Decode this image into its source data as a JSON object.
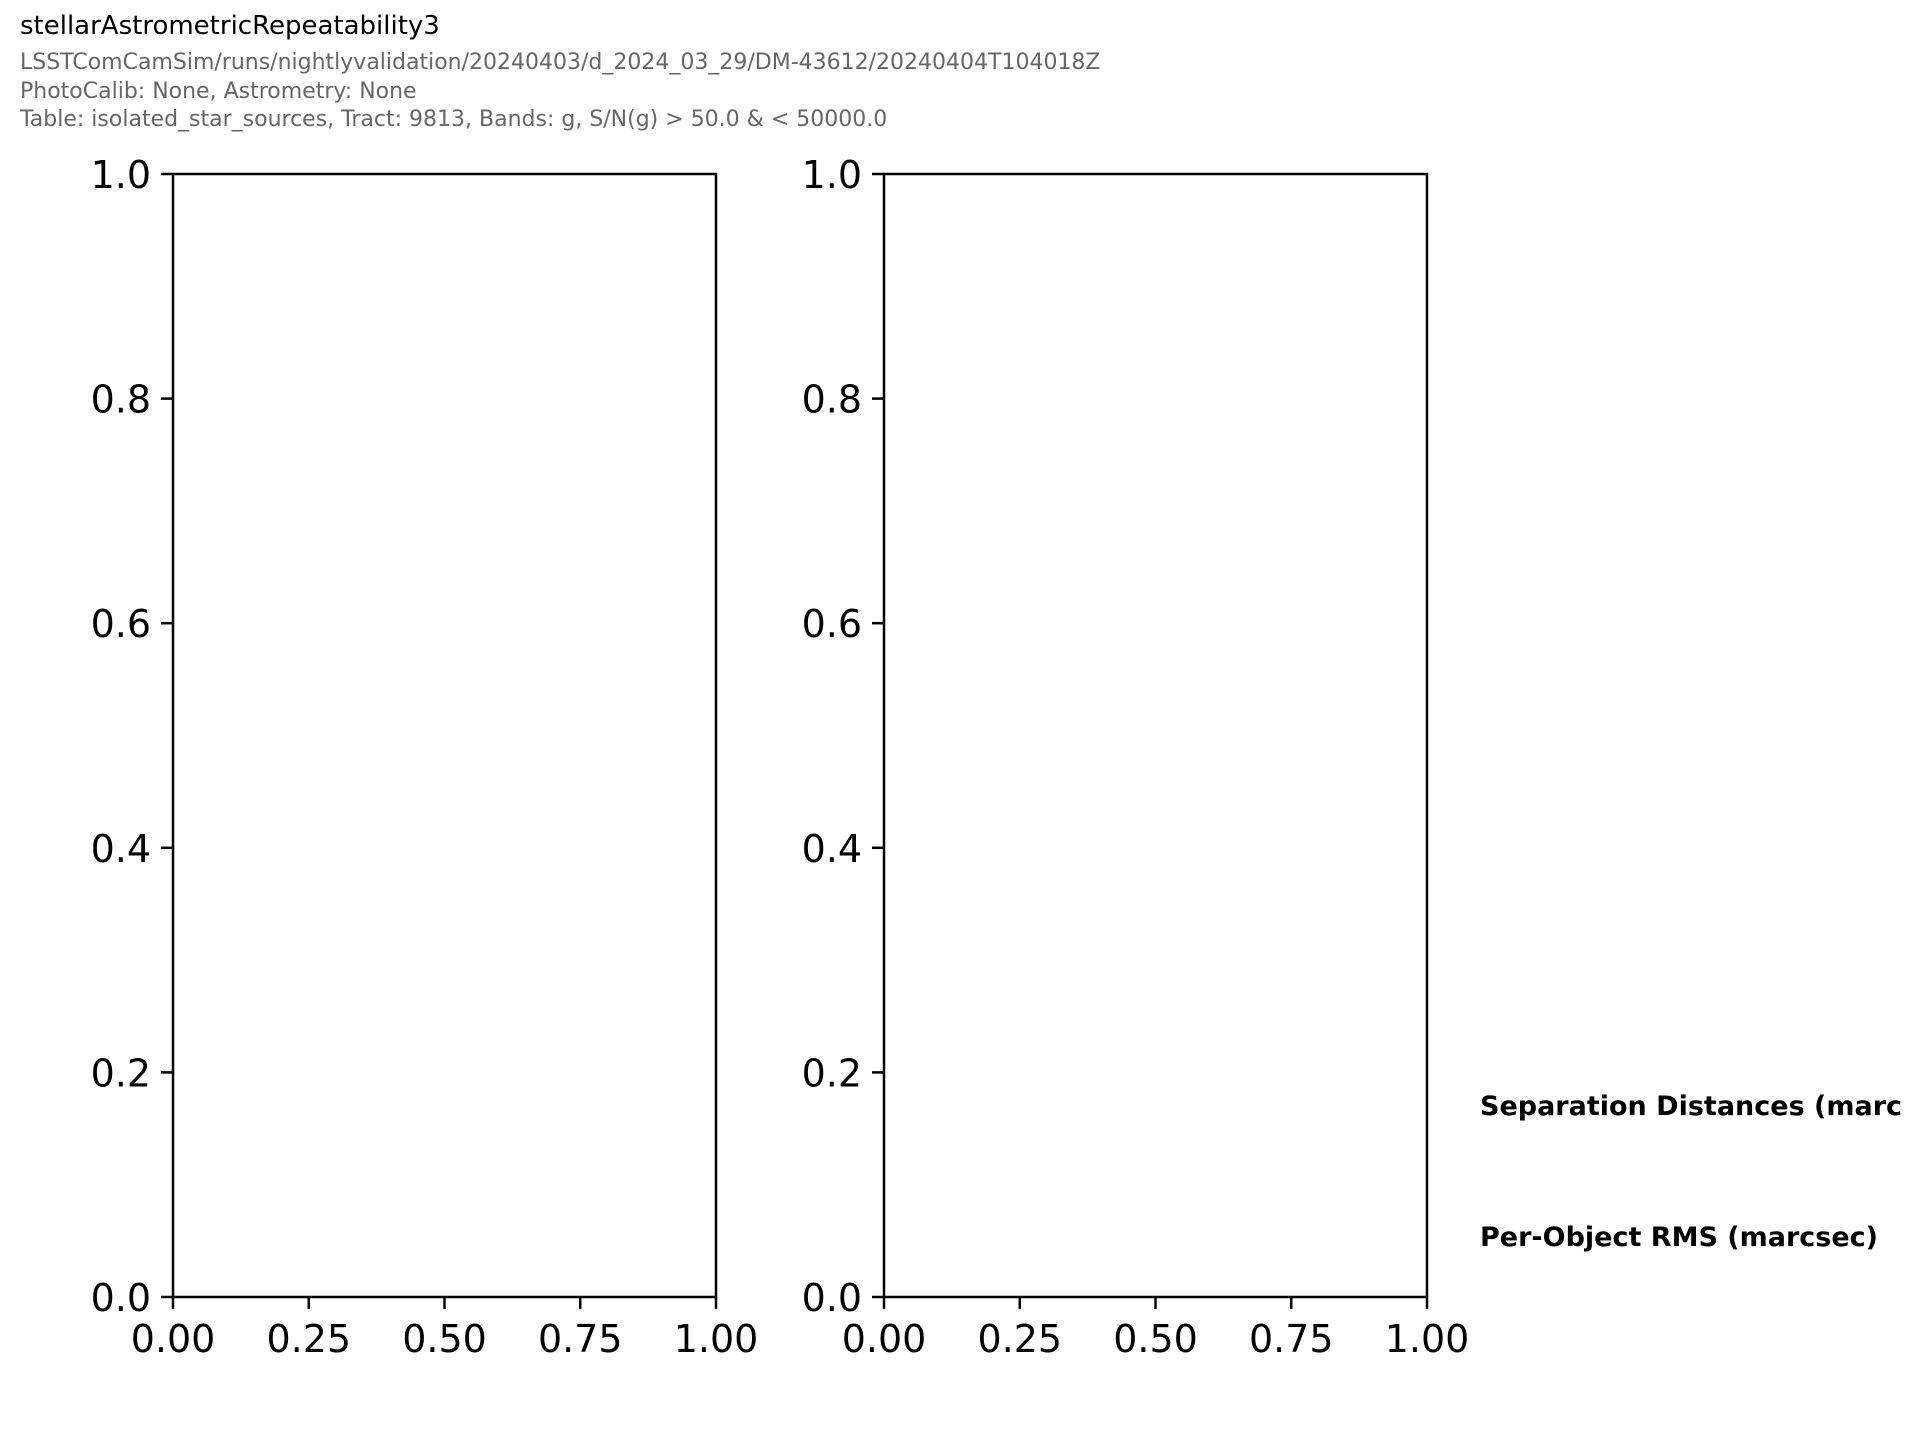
{
  "header": {
    "title": "stellarAstrometricRepeatability3",
    "subtitle_lines": [
      "LSSTComCamSim/runs/nightlyvalidation/20240403/d_2024_03_29/DM-43612/20240404T104018Z",
      "PhotoCalib: None, Astrometry: None",
      "Table: isolated_star_sources, Tract: 9813, Bands: g, S/N(g) > 50.0 & < 50000.0"
    ]
  },
  "side_labels": {
    "separation": "Separation Distances (marc",
    "rms": "Per-Object RMS (marcsec)"
  },
  "colors": {
    "title": "#000000",
    "subtitle": "#666666",
    "axes": "#000000"
  },
  "chart_data": [
    {
      "type": "scatter",
      "title": "",
      "xlabel": "",
      "ylabel": "",
      "xlim": [
        0,
        1
      ],
      "ylim": [
        0,
        1
      ],
      "xticks": [
        "0.00",
        "0.25",
        "0.50",
        "0.75",
        "1.00"
      ],
      "yticks": [
        "0.0",
        "0.2",
        "0.4",
        "0.6",
        "0.8",
        "1.0"
      ],
      "grid": false,
      "series": []
    },
    {
      "type": "scatter",
      "title": "",
      "xlabel": "",
      "ylabel": "",
      "xlim": [
        0,
        1
      ],
      "ylim": [
        0,
        1
      ],
      "xticks": [
        "0.00",
        "0.25",
        "0.50",
        "0.75",
        "1.00"
      ],
      "yticks": [
        "0.0",
        "0.2",
        "0.4",
        "0.6",
        "0.8",
        "1.0"
      ],
      "grid": false,
      "series": []
    }
  ]
}
